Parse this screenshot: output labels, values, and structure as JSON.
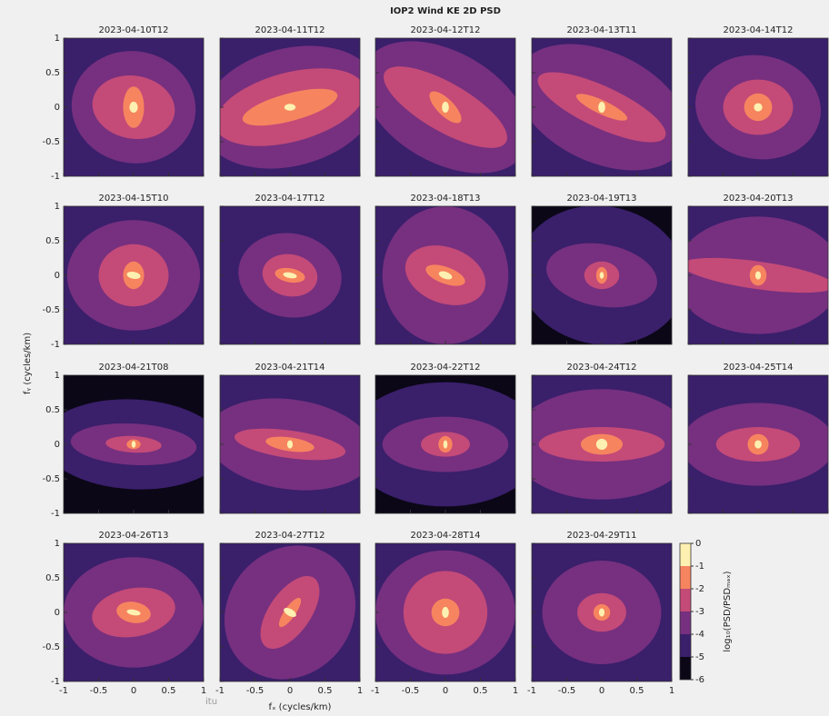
{
  "chart_data": {
    "type": "contour",
    "title": "IOP2 Wind KE 2D PSD",
    "xlabel": "fₓ (cycles/km)",
    "ylabel": "fᵧ (cycles/km)",
    "xlim": [
      -1,
      1
    ],
    "ylim": [
      -1,
      1
    ],
    "xticks": [
      -1,
      -0.5,
      0,
      0.5,
      1
    ],
    "yticks": [
      -1,
      -0.5,
      0,
      0.5,
      1
    ],
    "colorbar": {
      "label": "log₁₀(PSD/PSDₘₐₓ)",
      "clim": [
        -6,
        0
      ],
      "ticks": [
        0,
        -1,
        -2,
        -3,
        -4,
        -5,
        -6
      ],
      "colors": [
        "#0b0717",
        "#3a1f6b",
        "#76307f",
        "#c44a78",
        "#f6845f",
        "#fdf0b0"
      ]
    },
    "panels": [
      {
        "title": "2023-04-10T12",
        "background": -5,
        "contours": [
          [
            -4,
            0.8,
            0.9,
            80
          ],
          [
            -3,
            0.45,
            0.6,
            80
          ],
          [
            -2,
            0.15,
            0.3,
            0
          ],
          [
            -1,
            0.06,
            0.08,
            0
          ]
        ]
      },
      {
        "title": "2023-04-11T12",
        "background": -5,
        "contours": [
          [
            -4,
            1.3,
            0.85,
            15
          ],
          [
            -3,
            1.1,
            0.5,
            15
          ],
          [
            -2,
            0.7,
            0.2,
            15
          ],
          [
            -1,
            0.08,
            0.05,
            0
          ]
        ]
      },
      {
        "title": "2023-04-12T12",
        "background": -5,
        "contours": [
          [
            -4,
            1.3,
            0.8,
            -30
          ],
          [
            -3,
            1.0,
            0.35,
            -30
          ],
          [
            -2,
            0.3,
            0.12,
            -45
          ],
          [
            -1,
            0.05,
            0.08,
            0
          ]
        ]
      },
      {
        "title": "2023-04-13T11",
        "background": -5,
        "contours": [
          [
            -4,
            1.3,
            0.8,
            -25
          ],
          [
            -3,
            1.0,
            0.3,
            -25
          ],
          [
            -2,
            0.4,
            0.1,
            -25
          ],
          [
            -1,
            0.05,
            0.08,
            0
          ]
        ]
      },
      {
        "title": "2023-04-14T12",
        "background": -5,
        "contours": [
          [
            -4,
            0.9,
            0.75,
            -10
          ],
          [
            -3,
            0.5,
            0.4,
            0
          ],
          [
            -2,
            0.2,
            0.2,
            0
          ],
          [
            -1,
            0.06,
            0.06,
            0
          ]
        ]
      },
      {
        "title": "2023-04-15T10",
        "background": -5,
        "contours": [
          [
            -4,
            0.95,
            0.8,
            0
          ],
          [
            -3,
            0.5,
            0.45,
            0
          ],
          [
            -2,
            0.15,
            0.2,
            0
          ],
          [
            -1,
            0.05,
            0.1,
            80
          ]
        ]
      },
      {
        "title": "2023-04-17T12",
        "background": -5,
        "contours": [
          [
            -4,
            0.6,
            0.75,
            80
          ],
          [
            -3,
            0.3,
            0.4,
            80
          ],
          [
            -2,
            0.1,
            0.22,
            80
          ],
          [
            -1,
            0.04,
            0.1,
            80
          ]
        ]
      },
      {
        "title": "2023-04-18T13",
        "background": -5,
        "contours": [
          [
            -4,
            0.9,
            1.0,
            0
          ],
          [
            -3,
            0.4,
            0.6,
            70
          ],
          [
            -2,
            0.12,
            0.3,
            70
          ],
          [
            -1,
            0.05,
            0.1,
            70
          ]
        ]
      },
      {
        "title": "2023-04-19T13",
        "background": -6,
        "contours": [
          [
            -5,
            1.2,
            1.0,
            -10
          ],
          [
            -4,
            0.8,
            0.45,
            -10
          ],
          [
            -3,
            0.25,
            0.2,
            0
          ],
          [
            -2,
            0.08,
            0.12,
            0
          ],
          [
            -1,
            0.03,
            0.05,
            0
          ]
        ]
      },
      {
        "title": "2023-04-20T13",
        "background": -5,
        "contours": [
          [
            -4,
            1.2,
            0.85,
            0
          ],
          [
            -3,
            1.1,
            0.2,
            -8
          ],
          [
            -2,
            0.12,
            0.15,
            0
          ],
          [
            -1,
            0.04,
            0.06,
            0
          ]
        ]
      },
      {
        "title": "2023-04-21T08",
        "background": -6,
        "contours": [
          [
            -5,
            1.3,
            0.65,
            -3
          ],
          [
            -4,
            0.9,
            0.3,
            -3
          ],
          [
            -3,
            0.4,
            0.12,
            -3
          ],
          [
            -2,
            0.1,
            0.07,
            0
          ],
          [
            -1,
            0.03,
            0.05,
            0
          ]
        ]
      },
      {
        "title": "2023-04-21T14",
        "background": -5,
        "contours": [
          [
            -4,
            1.2,
            0.65,
            -8
          ],
          [
            -3,
            0.8,
            0.2,
            -8
          ],
          [
            -2,
            0.35,
            0.1,
            -8
          ],
          [
            -1,
            0.04,
            0.06,
            0
          ]
        ]
      },
      {
        "title": "2023-04-22T12",
        "background": -6,
        "contours": [
          [
            -5,
            1.4,
            0.9,
            0
          ],
          [
            -4,
            0.9,
            0.4,
            0
          ],
          [
            -3,
            0.35,
            0.18,
            0
          ],
          [
            -2,
            0.1,
            0.12,
            0
          ],
          [
            -1,
            0.03,
            0.06,
            0
          ]
        ]
      },
      {
        "title": "2023-04-24T12",
        "background": -5,
        "contours": [
          [
            -4,
            1.3,
            0.8,
            0
          ],
          [
            -3,
            0.9,
            0.25,
            0
          ],
          [
            -2,
            0.3,
            0.15,
            0
          ],
          [
            -1,
            0.08,
            0.08,
            0
          ]
        ]
      },
      {
        "title": "2023-04-25T14",
        "background": -5,
        "contours": [
          [
            -4,
            1.1,
            0.6,
            0
          ],
          [
            -3,
            0.6,
            0.25,
            0
          ],
          [
            -2,
            0.15,
            0.15,
            0
          ],
          [
            -1,
            0.05,
            0.06,
            0
          ]
        ]
      },
      {
        "title": "2023-04-26T13",
        "background": -5,
        "contours": [
          [
            -4,
            1.0,
            0.8,
            0
          ],
          [
            -3,
            0.6,
            0.35,
            10
          ],
          [
            -2,
            0.15,
            0.25,
            80
          ],
          [
            -1,
            0.04,
            0.1,
            80
          ]
        ]
      },
      {
        "title": "2023-04-27T12",
        "background": -5,
        "contours": [
          [
            -4,
            1.0,
            0.9,
            50
          ],
          [
            -3,
            0.6,
            0.3,
            55
          ],
          [
            -2,
            0.25,
            0.08,
            55
          ],
          [
            -1,
            0.05,
            0.1,
            60
          ]
        ]
      },
      {
        "title": "2023-04-28T14",
        "background": -5,
        "contours": [
          [
            -4,
            1.0,
            0.9,
            0
          ],
          [
            -3,
            0.6,
            0.6,
            0
          ],
          [
            -2,
            0.2,
            0.2,
            0
          ],
          [
            -1,
            0.05,
            0.08,
            0
          ]
        ]
      },
      {
        "title": "2023-04-29T11",
        "background": -5,
        "contours": [
          [
            -4,
            0.85,
            0.75,
            0
          ],
          [
            -3,
            0.35,
            0.28,
            0
          ],
          [
            -2,
            0.12,
            0.12,
            0
          ],
          [
            -1,
            0.04,
            0.06,
            0
          ]
        ]
      }
    ],
    "watermark": "itu"
  }
}
